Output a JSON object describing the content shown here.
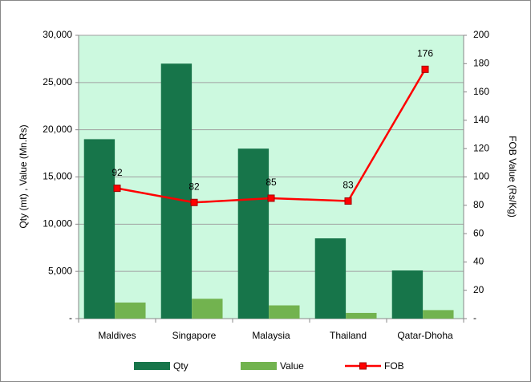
{
  "chart_data": {
    "type": "bar",
    "y_label": "Qty (mt) , Value (Mn.Rs)",
    "y2_label": "FOB Value (Rs/Kg)",
    "categories": [
      "Maldives",
      "Singapore",
      "Malaysia",
      "Thailand",
      "Qatar-Dhoha"
    ],
    "series": [
      {
        "name": "Qty",
        "color": "#17754a",
        "values": [
          19000,
          27000,
          18000,
          8500,
          5100
        ]
      },
      {
        "name": "Value",
        "color": "#72b34f",
        "values": [
          1700,
          2100,
          1400,
          600,
          900
        ]
      },
      {
        "name": "FOB",
        "type": "line",
        "axis": "y2",
        "color": "#ff0000",
        "values": [
          92,
          82,
          85,
          83,
          176
        ]
      }
    ],
    "ylim": [
      0,
      30000
    ],
    "yticks": [
      {
        "value": 0,
        "label": "-"
      },
      {
        "value": 5000,
        "label": "5,000"
      },
      {
        "value": 10000,
        "label": "10,000"
      },
      {
        "value": 15000,
        "label": "15,000"
      },
      {
        "value": 20000,
        "label": "20,000"
      },
      {
        "value": 25000,
        "label": "25,000"
      },
      {
        "value": 30000,
        "label": "30,000"
      }
    ],
    "y2lim": [
      0,
      200
    ],
    "y2ticks": [
      {
        "value": 0,
        "label": "-"
      },
      20,
      40,
      60,
      80,
      100,
      120,
      140,
      160,
      180,
      200
    ],
    "grid": true,
    "legend": "bottom"
  }
}
